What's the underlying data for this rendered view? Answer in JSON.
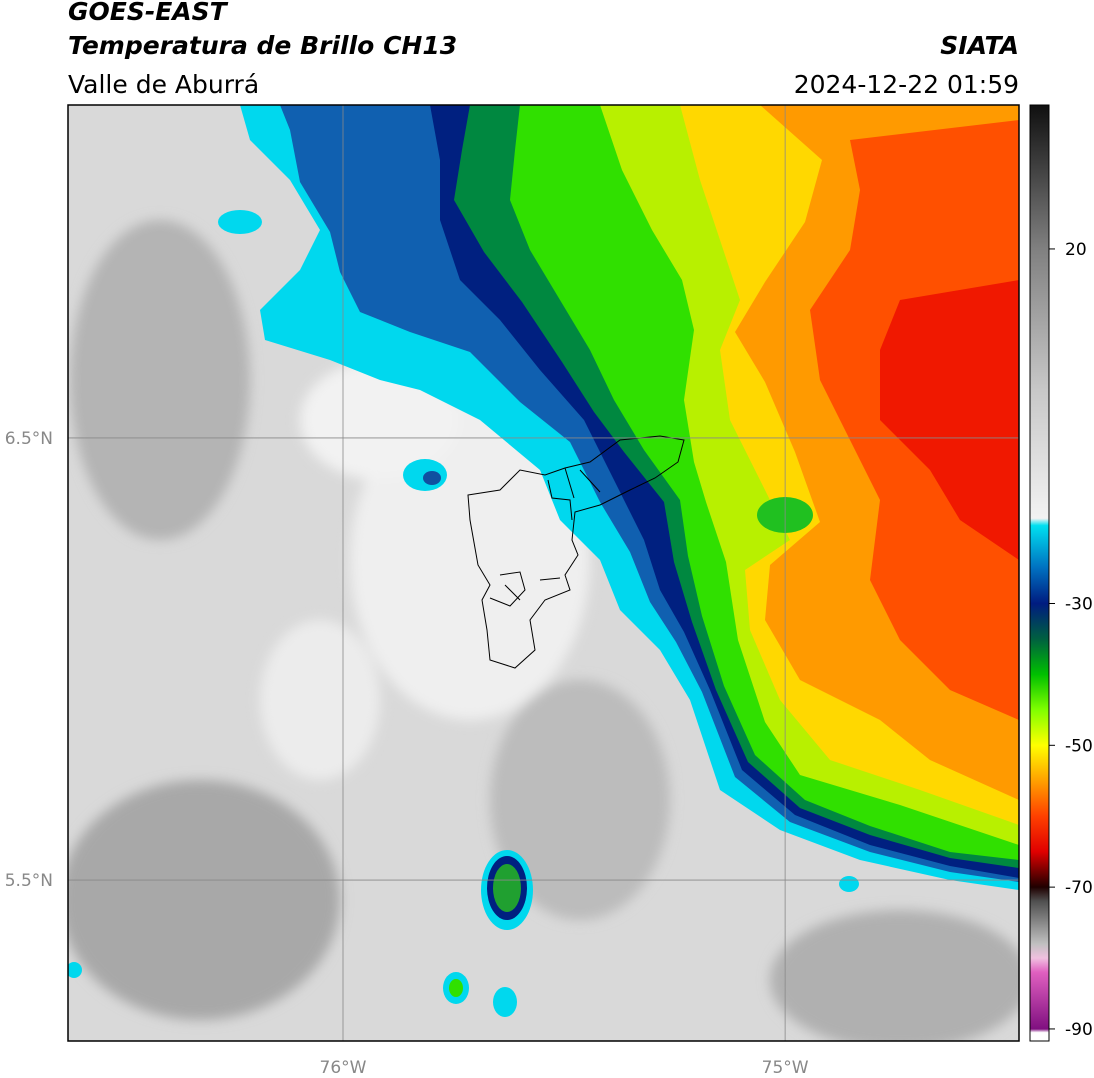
{
  "title": "GOES-EAST",
  "subtitle": "Temperatura de Brillo CH13",
  "region": "Valle de Aburrá",
  "source": "SIATA",
  "datetime": "2024-12-22 01:59",
  "map": {
    "xlim": [
      -76.622,
      -74.471
    ],
    "ylim": [
      5.136,
      7.253
    ],
    "xticks": [
      {
        "value": -76,
        "label": "76°W"
      },
      {
        "value": -75,
        "label": "75°W"
      }
    ],
    "yticks": [
      {
        "value": 6.5,
        "label": "6.5°N"
      },
      {
        "value": 5.5,
        "label": "5.5°N"
      }
    ],
    "grid": true
  },
  "colorbar": {
    "lim": [
      -91.7,
      40.3
    ],
    "ticks": [
      20,
      -30,
      -50,
      -70,
      -90
    ],
    "colormap": [
      {
        "value": 40,
        "color": "#111111"
      },
      {
        "value": 20,
        "color": "#808080"
      },
      {
        "value": 0,
        "color": "#c8c8c8"
      },
      {
        "value": -18,
        "color": "#f2f2f2"
      },
      {
        "value": -19,
        "color": "#00e0f0"
      },
      {
        "value": -25,
        "color": "#0070c0"
      },
      {
        "value": -30,
        "color": "#001c80"
      },
      {
        "value": -35,
        "color": "#006040"
      },
      {
        "value": -40,
        "color": "#00c000"
      },
      {
        "value": -45,
        "color": "#80ff00"
      },
      {
        "value": -50,
        "color": "#ffff00"
      },
      {
        "value": -55,
        "color": "#ffa000"
      },
      {
        "value": -60,
        "color": "#ff4000"
      },
      {
        "value": -65,
        "color": "#e00000"
      },
      {
        "value": -70,
        "color": "#200000"
      },
      {
        "value": -72,
        "color": "#505050"
      },
      {
        "value": -78,
        "color": "#c0c0c0"
      },
      {
        "value": -80,
        "color": "#f0c0e0"
      },
      {
        "value": -82,
        "color": "#e060c0"
      },
      {
        "value": -90,
        "color": "#801080"
      },
      {
        "value": -90.5,
        "color": "#ffffff"
      }
    ]
  }
}
